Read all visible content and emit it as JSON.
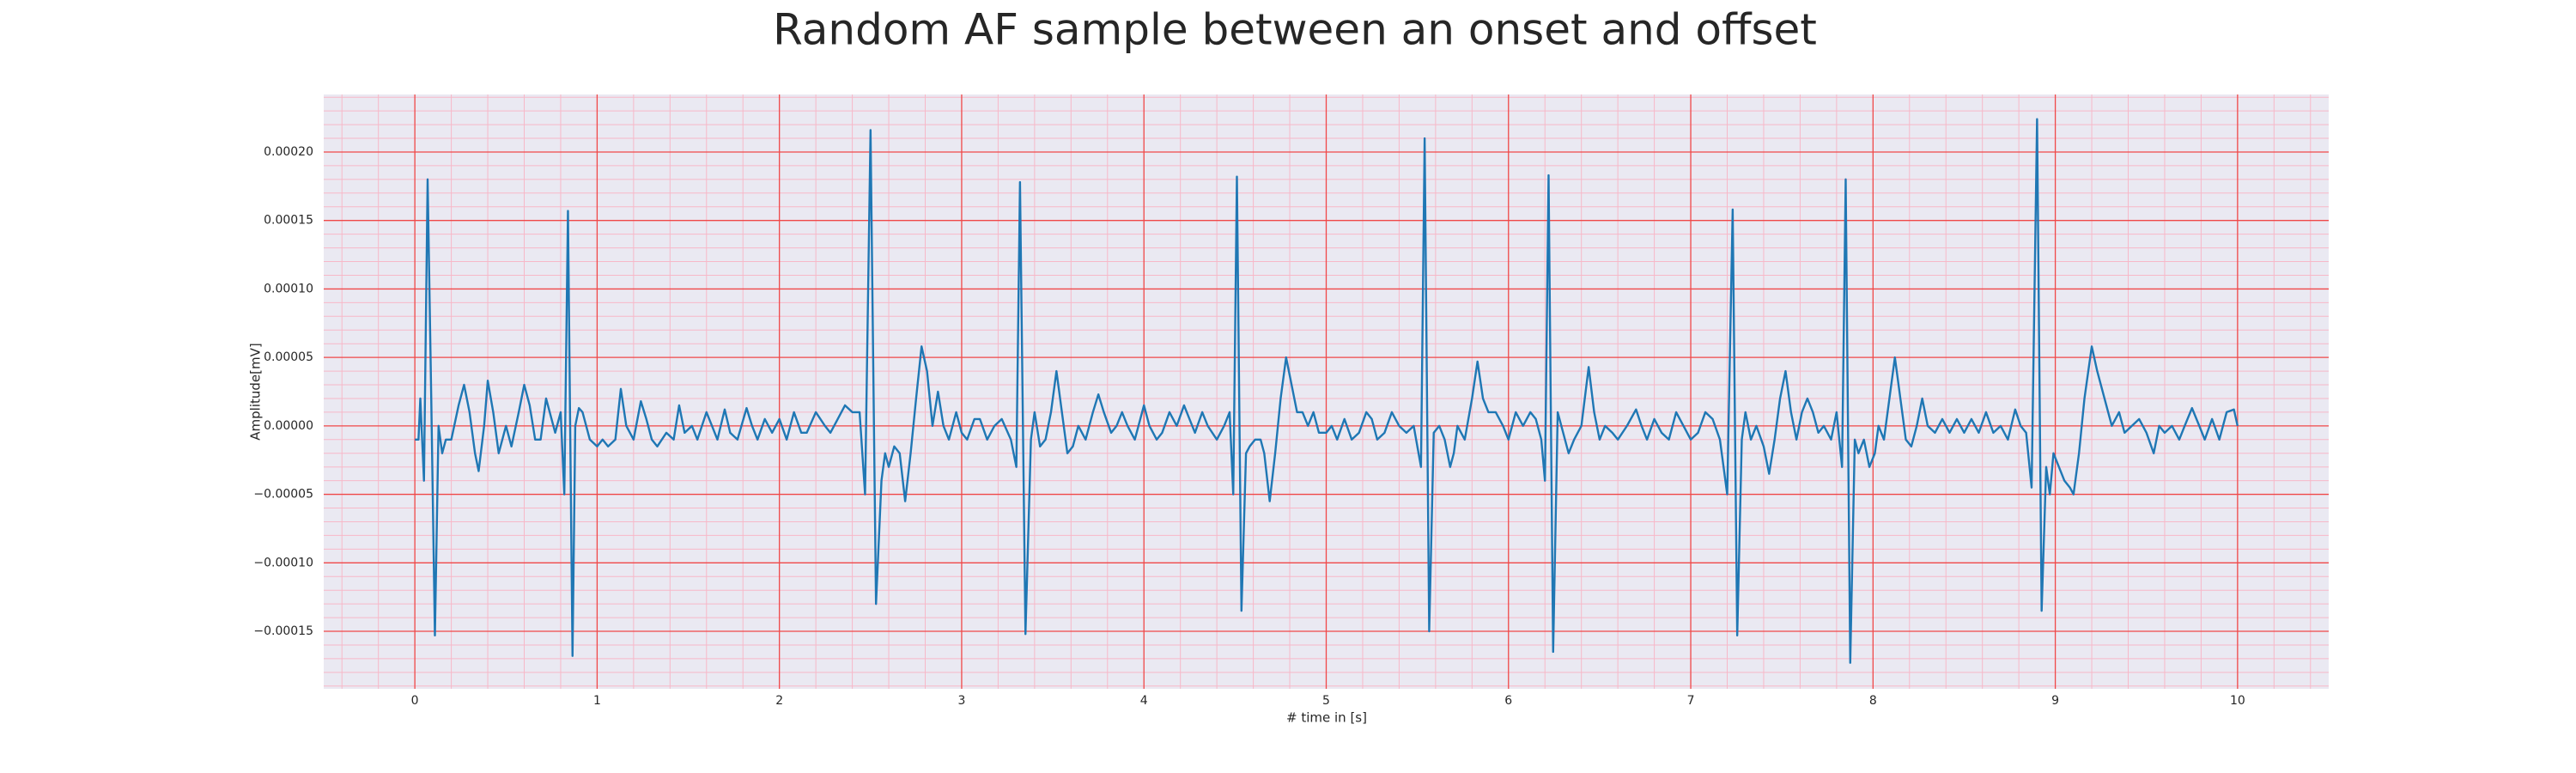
{
  "chart_data": {
    "type": "line",
    "title": "Random AF sample between an onset and offset",
    "x_label": "# time in [s]",
    "y_label": "Amplitude[mV]",
    "color": "#1f77b4",
    "grid": true,
    "minor_grid": true,
    "minor_divisions": 5,
    "xlim": [
      -0.5,
      10.5
    ],
    "xticks": [
      0,
      1,
      2,
      3,
      4,
      5,
      6,
      7,
      8,
      9,
      10
    ],
    "ylim": [
      -0.000192,
      0.000242
    ],
    "yticks": [
      {
        "value": -0.00015,
        "label": "−0.00015"
      },
      {
        "value": -0.0001,
        "label": "−0.00010"
      },
      {
        "value": -5e-05,
        "label": "−0.00005"
      },
      {
        "value": 0,
        "label": "0.00000"
      },
      {
        "value": 5e-05,
        "label": "0.00005"
      },
      {
        "value": 0.0001,
        "label": "0.00010"
      },
      {
        "value": 0.00015,
        "label": "0.00015"
      },
      {
        "value": 0.0002,
        "label": "0.00020"
      }
    ],
    "x": [
      0.0,
      0.02,
      0.03,
      0.05,
      0.07,
      0.09,
      0.11,
      0.13,
      0.15,
      0.17,
      0.2,
      0.24,
      0.27,
      0.3,
      0.33,
      0.35,
      0.38,
      0.4,
      0.43,
      0.46,
      0.5,
      0.53,
      0.57,
      0.6,
      0.63,
      0.66,
      0.69,
      0.72,
      0.74,
      0.77,
      0.8,
      0.82,
      0.84,
      0.865,
      0.88,
      0.9,
      0.92,
      0.94,
      0.96,
      1.0,
      1.03,
      1.06,
      1.1,
      1.13,
      1.16,
      1.2,
      1.24,
      1.27,
      1.3,
      1.33,
      1.38,
      1.42,
      1.45,
      1.48,
      1.52,
      1.55,
      1.6,
      1.63,
      1.66,
      1.7,
      1.73,
      1.77,
      1.82,
      1.85,
      1.88,
      1.92,
      1.96,
      2.0,
      2.04,
      2.08,
      2.12,
      2.15,
      2.2,
      2.25,
      2.28,
      2.32,
      2.36,
      2.4,
      2.44,
      2.47,
      2.5,
      2.53,
      2.56,
      2.58,
      2.6,
      2.63,
      2.66,
      2.69,
      2.72,
      2.75,
      2.78,
      2.81,
      2.84,
      2.87,
      2.9,
      2.93,
      2.97,
      3.0,
      3.03,
      3.07,
      3.1,
      3.14,
      3.18,
      3.22,
      3.27,
      3.3,
      3.32,
      3.35,
      3.38,
      3.4,
      3.43,
      3.46,
      3.49,
      3.52,
      3.55,
      3.58,
      3.61,
      3.64,
      3.68,
      3.72,
      3.75,
      3.78,
      3.82,
      3.85,
      3.88,
      3.91,
      3.95,
      4.0,
      4.03,
      4.07,
      4.1,
      4.14,
      4.18,
      4.22,
      4.25,
      4.28,
      4.32,
      4.35,
      4.4,
      4.44,
      4.47,
      4.49,
      4.51,
      4.535,
      4.56,
      4.58,
      4.61,
      4.64,
      4.66,
      4.69,
      4.72,
      4.75,
      4.78,
      4.81,
      4.84,
      4.87,
      4.9,
      4.93,
      4.96,
      5.0,
      5.03,
      5.06,
      5.1,
      5.14,
      5.18,
      5.22,
      5.25,
      5.28,
      5.32,
      5.36,
      5.4,
      5.44,
      5.48,
      5.52,
      5.54,
      5.565,
      5.59,
      5.62,
      5.65,
      5.68,
      5.7,
      5.72,
      5.76,
      5.8,
      5.83,
      5.86,
      5.89,
      5.93,
      5.97,
      6.0,
      6.04,
      6.08,
      6.12,
      6.15,
      6.18,
      6.2,
      6.22,
      6.245,
      6.27,
      6.3,
      6.33,
      6.36,
      6.4,
      6.44,
      6.47,
      6.5,
      6.53,
      6.57,
      6.6,
      6.65,
      6.7,
      6.73,
      6.76,
      6.8,
      6.84,
      6.88,
      6.92,
      6.96,
      7.0,
      7.04,
      7.08,
      7.12,
      7.16,
      7.2,
      7.23,
      7.255,
      7.28,
      7.3,
      7.33,
      7.36,
      7.4,
      7.43,
      7.46,
      7.49,
      7.52,
      7.55,
      7.58,
      7.61,
      7.64,
      7.67,
      7.7,
      7.73,
      7.77,
      7.8,
      7.83,
      7.85,
      7.875,
      7.9,
      7.92,
      7.95,
      7.98,
      8.01,
      8.03,
      8.06,
      8.09,
      8.12,
      8.15,
      8.18,
      8.21,
      8.24,
      8.27,
      8.3,
      8.34,
      8.38,
      8.42,
      8.46,
      8.5,
      8.54,
      8.58,
      8.62,
      8.66,
      8.7,
      8.74,
      8.78,
      8.81,
      8.84,
      8.87,
      8.9,
      8.925,
      8.95,
      8.97,
      8.99,
      9.02,
      9.05,
      9.08,
      9.1,
      9.13,
      9.16,
      9.2,
      9.23,
      9.27,
      9.31,
      9.35,
      9.38,
      9.42,
      9.46,
      9.5,
      9.54,
      9.57,
      9.6,
      9.64,
      9.68,
      9.71,
      9.75,
      9.79,
      9.82,
      9.86,
      9.9,
      9.94,
      9.98,
      10.0
    ],
    "values": [
      -1e-05,
      -1e-05,
      2e-05,
      -4e-05,
      0.00018,
      2e-05,
      -0.000153,
      0,
      -2e-05,
      -1e-05,
      -1e-05,
      1.5e-05,
      3e-05,
      1e-05,
      -2e-05,
      -3.3e-05,
      0,
      3.3e-05,
      1e-05,
      -2e-05,
      0,
      -1.5e-05,
      1e-05,
      3e-05,
      1.5e-05,
      -1e-05,
      -1e-05,
      2e-05,
      1e-05,
      -5e-06,
      1e-05,
      -5e-05,
      0.000157,
      -0.000168,
      0,
      1.3e-05,
      1e-05,
      0,
      -1e-05,
      -1.5e-05,
      -1e-05,
      -1.5e-05,
      -1e-05,
      2.7e-05,
      0,
      -1e-05,
      1.8e-05,
      5e-06,
      -1e-05,
      -1.5e-05,
      -5e-06,
      -1e-05,
      1.5e-05,
      -5e-06,
      0,
      -1e-05,
      1e-05,
      0,
      -1e-05,
      1.2e-05,
      -5e-06,
      -1e-05,
      1.3e-05,
      0,
      -1e-05,
      5e-06,
      -5e-06,
      5e-06,
      -1e-05,
      1e-05,
      -5e-06,
      -5e-06,
      1e-05,
      0,
      -5e-06,
      5e-06,
      1.5e-05,
      1e-05,
      1e-05,
      -5e-05,
      0.000216,
      -0.00013,
      -4e-05,
      -2e-05,
      -3e-05,
      -1.5e-05,
      -2e-05,
      -5.5e-05,
      -2e-05,
      2e-05,
      5.8e-05,
      4e-05,
      0,
      2.5e-05,
      0,
      -1e-05,
      1e-05,
      -5e-06,
      -1e-05,
      5e-06,
      5e-06,
      -1e-05,
      0,
      5e-06,
      -1e-05,
      -3e-05,
      0.000178,
      -0.000152,
      -1e-05,
      1e-05,
      -1.5e-05,
      -1e-05,
      1e-05,
      4e-05,
      1e-05,
      -2e-05,
      -1.5e-05,
      0,
      -1e-05,
      1e-05,
      2.3e-05,
      1e-05,
      -5e-06,
      0,
      1e-05,
      0,
      -1e-05,
      1.5e-05,
      0,
      -1e-05,
      -5e-06,
      1e-05,
      0,
      1.5e-05,
      5e-06,
      -5e-06,
      1e-05,
      0,
      -1e-05,
      0,
      1e-05,
      -5e-05,
      0.000182,
      -0.000135,
      -2e-05,
      -1.5e-05,
      -1e-05,
      -1e-05,
      -2e-05,
      -5.5e-05,
      -2e-05,
      2e-05,
      5e-05,
      3e-05,
      1e-05,
      1e-05,
      0,
      1e-05,
      -5e-06,
      -5e-06,
      0,
      -1e-05,
      5e-06,
      -1e-05,
      -5e-06,
      1e-05,
      5e-06,
      -1e-05,
      -5e-06,
      1e-05,
      0,
      -5e-06,
      0,
      -3e-05,
      0.00021,
      -0.00015,
      -5e-06,
      0,
      -1e-05,
      -3e-05,
      -2e-05,
      0,
      -1e-05,
      2e-05,
      4.7e-05,
      2e-05,
      1e-05,
      1e-05,
      0,
      -1e-05,
      1e-05,
      0,
      1e-05,
      5e-06,
      -1e-05,
      -4e-05,
      0.000183,
      -0.000165,
      1e-05,
      -5e-06,
      -2e-05,
      -1e-05,
      0,
      4.3e-05,
      1e-05,
      -1e-05,
      0,
      -5e-06,
      -1e-05,
      0,
      1.2e-05,
      0,
      -1e-05,
      5e-06,
      -5e-06,
      -1e-05,
      1e-05,
      0,
      -1e-05,
      -5e-06,
      1e-05,
      5e-06,
      -1e-05,
      -5e-05,
      0.000158,
      -0.000153,
      -1e-05,
      1e-05,
      -1e-05,
      0,
      -1.5e-05,
      -3.5e-05,
      -1e-05,
      2e-05,
      4e-05,
      1e-05,
      -1e-05,
      1e-05,
      2e-05,
      1e-05,
      -5e-06,
      0,
      -1e-05,
      1e-05,
      -3e-05,
      0.00018,
      -0.000173,
      -1e-05,
      -2e-05,
      -1e-05,
      -3e-05,
      -2e-05,
      0,
      -1e-05,
      2e-05,
      5e-05,
      2e-05,
      -1e-05,
      -1.5e-05,
      0,
      2e-05,
      0,
      -5e-06,
      5e-06,
      -5e-06,
      5e-06,
      -5e-06,
      5e-06,
      -5e-06,
      1e-05,
      -5e-06,
      0,
      -1e-05,
      1.2e-05,
      0,
      -5e-06,
      -4.5e-05,
      0.000224,
      -0.000135,
      -3e-05,
      -5e-05,
      -2e-05,
      -3e-05,
      -4e-05,
      -4.5e-05,
      -5e-05,
      -2e-05,
      2e-05,
      5.8e-05,
      4e-05,
      2e-05,
      0,
      1e-05,
      -5e-06,
      0,
      5e-06,
      -5e-06,
      -2e-05,
      0,
      -5e-06,
      0,
      -1e-05,
      0,
      1.3e-05,
      0,
      -1e-05,
      5e-06,
      -1e-05,
      1e-05,
      1.2e-05,
      0
    ]
  }
}
